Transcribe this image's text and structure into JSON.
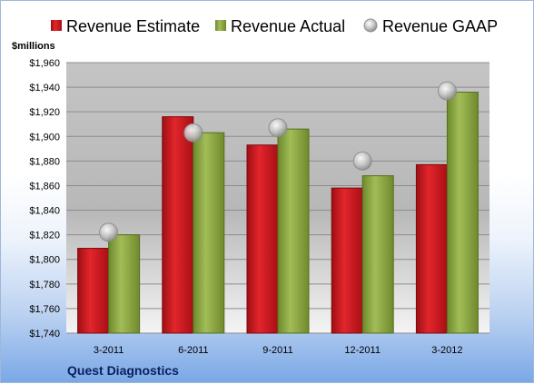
{
  "chart_data": {
    "type": "bar",
    "unit_label": "$millions",
    "company": "Quest Diagnostics",
    "categories": [
      "3-2011",
      "6-2011",
      "9-2011",
      "12-2011",
      "3-2012"
    ],
    "series": [
      {
        "name": "Revenue Estimate",
        "kind": "bar",
        "color": "#c0151b",
        "values": [
          1809,
          1916,
          1893,
          1858,
          1877
        ]
      },
      {
        "name": "Revenue Actual",
        "kind": "bar",
        "color": "#8aa33c",
        "values": [
          1820,
          1903,
          1906,
          1868,
          1936
        ]
      },
      {
        "name": "Revenue GAAP",
        "kind": "marker",
        "color": "#b5b5b5",
        "values": [
          1822,
          1903,
          1907,
          1880,
          1937
        ]
      }
    ],
    "ylim": [
      1740,
      1960
    ],
    "ytick_step": 20,
    "ytick_labels": [
      "$1,740",
      "$1,760",
      "$1,780",
      "$1,800",
      "$1,820",
      "$1,840",
      "$1,860",
      "$1,880",
      "$1,900",
      "$1,920",
      "$1,940",
      "$1,960"
    ],
    "grid": true,
    "legend_position": "top"
  }
}
